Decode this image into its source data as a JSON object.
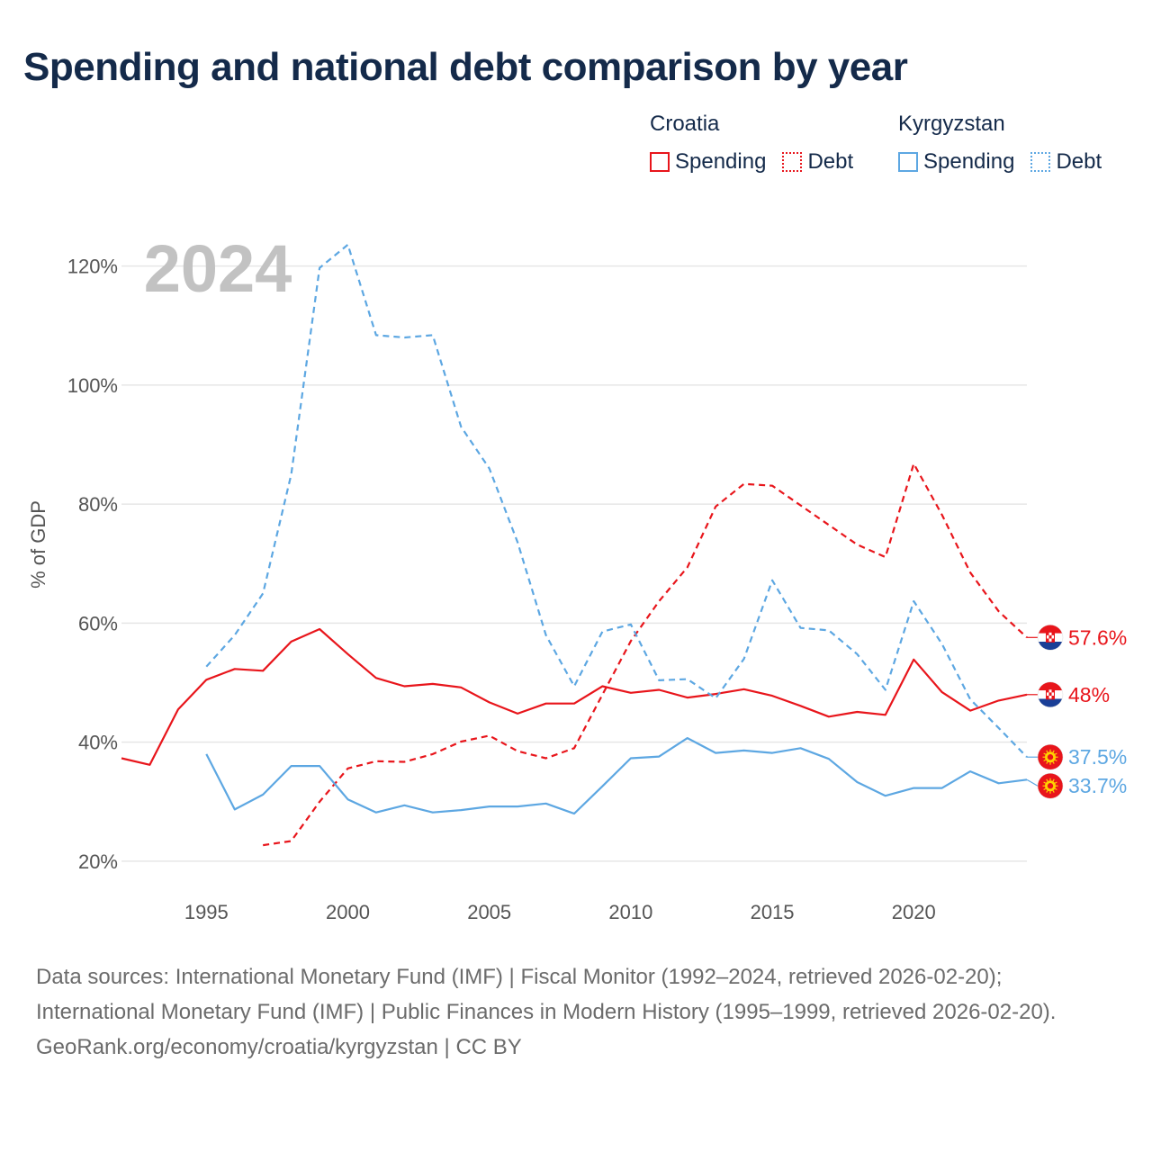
{
  "title": "Spending and national debt comparison by year",
  "legend": {
    "groups": [
      {
        "country": "Croatia",
        "spending_label": "Spending",
        "debt_label": "Debt",
        "color": "#e8151b"
      },
      {
        "country": "Kyrgyzstan",
        "spending_label": "Spending",
        "debt_label": "Debt",
        "color": "#5da7e2"
      }
    ]
  },
  "footer": {
    "sources": "Data sources: International Monetary Fund (IMF) | Fiscal Monitor (1992–2024, retrieved 2026-02-20); International Monetary Fund (IMF) | Public Finances in Modern History (1995–1999, retrieved 2026-02-20).",
    "credit": "GeoRank.org/economy/croatia/kyrgyzstan | CC BY"
  },
  "chart_data": {
    "type": "line",
    "title": "Spending and national debt comparison by year",
    "year_watermark": "2024",
    "ylabel": "% of GDP",
    "xlabel": "",
    "xlim": [
      1992,
      2024
    ],
    "ylim": [
      15,
      126
    ],
    "y_ticks": [
      20,
      40,
      60,
      80,
      100,
      120
    ],
    "y_tick_labels": [
      "20%",
      "40%",
      "60%",
      "80%",
      "100%",
      "120%"
    ],
    "x_ticks": [
      1995,
      2000,
      2005,
      2010,
      2015,
      2020
    ],
    "x_tick_labels": [
      "1995",
      "2000",
      "2005",
      "2010",
      "2015",
      "2020"
    ],
    "grid": true,
    "series": [
      {
        "name": "Croatia Spending",
        "country": "Croatia",
        "kind": "spending",
        "color": "#e8151b",
        "dash": false,
        "x": [
          1992,
          1993,
          1994,
          1995,
          1996,
          1997,
          1998,
          1999,
          2000,
          2001,
          2002,
          2003,
          2004,
          2005,
          2006,
          2007,
          2008,
          2009,
          2010,
          2011,
          2012,
          2013,
          2014,
          2015,
          2016,
          2017,
          2018,
          2019,
          2020,
          2021,
          2022,
          2023,
          2024
        ],
        "values": [
          37.3,
          36.2,
          45.5,
          50.5,
          52.3,
          52.0,
          56.9,
          59.0,
          54.8,
          50.8,
          49.4,
          49.8,
          49.2,
          46.7,
          44.8,
          46.5,
          46.5,
          49.4,
          48.3,
          48.8,
          47.5,
          48.1,
          48.9,
          47.8,
          46.1,
          44.3,
          45.1,
          44.6,
          53.9,
          48.4,
          45.3,
          47.0,
          48.0
        ],
        "end_label": "48%"
      },
      {
        "name": "Croatia Debt",
        "country": "Croatia",
        "kind": "debt",
        "color": "#e8151b",
        "dash": true,
        "x": [
          1997,
          1998,
          1999,
          2000,
          2001,
          2002,
          2003,
          2004,
          2005,
          2006,
          2007,
          2008,
          2009,
          2010,
          2011,
          2012,
          2013,
          2014,
          2015,
          2016,
          2017,
          2018,
          2019,
          2020,
          2021,
          2022,
          2023,
          2024
        ],
        "values": [
          22.7,
          23.4,
          30.0,
          35.6,
          36.8,
          36.7,
          38.0,
          40.1,
          41.1,
          38.5,
          37.3,
          39.0,
          48.0,
          57.0,
          63.7,
          69.4,
          79.6,
          83.4,
          83.1,
          79.8,
          76.5,
          73.2,
          71.1,
          86.8,
          78.2,
          68.5,
          62.0,
          57.6
        ],
        "end_label": "57.6%"
      },
      {
        "name": "Kyrgyzstan Spending",
        "country": "Kyrgyzstan",
        "kind": "spending",
        "color": "#5da7e2",
        "dash": false,
        "x": [
          1995,
          1996,
          1997,
          1998,
          1999,
          2000,
          2001,
          2002,
          2003,
          2004,
          2005,
          2006,
          2007,
          2008,
          2009,
          2010,
          2011,
          2012,
          2013,
          2014,
          2015,
          2016,
          2017,
          2018,
          2019,
          2020,
          2021,
          2022,
          2023,
          2024
        ],
        "values": [
          38.0,
          28.7,
          31.2,
          36.0,
          36.0,
          30.4,
          28.2,
          29.4,
          28.2,
          28.6,
          29.2,
          29.2,
          29.7,
          28.0,
          32.6,
          37.3,
          37.6,
          40.7,
          38.2,
          38.6,
          38.2,
          39.0,
          37.2,
          33.3,
          31.0,
          32.3,
          32.3,
          35.1,
          33.1,
          33.7
        ],
        "end_label": "33.7%"
      },
      {
        "name": "Kyrgyzstan Debt",
        "country": "Kyrgyzstan",
        "kind": "debt",
        "color": "#5da7e2",
        "dash": true,
        "x": [
          1995,
          1996,
          1997,
          1998,
          1999,
          2000,
          2001,
          2002,
          2003,
          2004,
          2005,
          2006,
          2007,
          2008,
          2009,
          2010,
          2011,
          2012,
          2013,
          2014,
          2015,
          2016,
          2017,
          2018,
          2019,
          2020,
          2021,
          2022,
          2023,
          2024
        ],
        "values": [
          52.7,
          58.0,
          65.0,
          85.0,
          119.7,
          123.6,
          108.4,
          108.0,
          108.4,
          93.0,
          86.0,
          73.6,
          58.0,
          49.4,
          58.6,
          59.8,
          50.4,
          50.6,
          47.4,
          54.0,
          67.2,
          59.2,
          58.8,
          54.8,
          48.8,
          63.7,
          56.5,
          47.2,
          42.4,
          37.5
        ],
        "end_label": "37.5%"
      }
    ]
  }
}
